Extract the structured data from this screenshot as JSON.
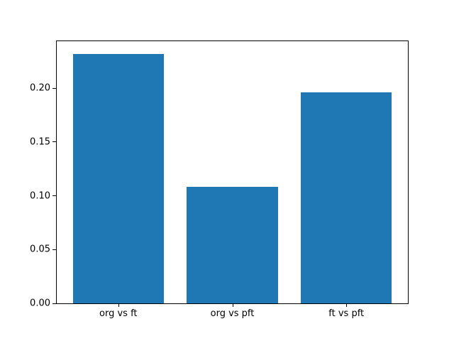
{
  "chart_data": {
    "type": "bar",
    "title": "",
    "xlabel": "",
    "ylabel": "",
    "categories": [
      "org vs ft",
      "org vs pft",
      "ft vs pft"
    ],
    "values": [
      0.232,
      0.108,
      0.196
    ],
    "yticks": [
      0.0,
      0.05,
      0.1,
      0.15,
      0.2
    ],
    "ytick_labels": [
      "0.00",
      "0.05",
      "0.10",
      "0.15",
      "0.20"
    ],
    "ylim": [
      0,
      0.2436
    ],
    "bar_color": "#1f77b4",
    "bar_width_fraction": 0.8,
    "grid": false,
    "legend": null,
    "background_color": "#ffffff",
    "spine_color": "#000000",
    "text_color": "#000000"
  }
}
